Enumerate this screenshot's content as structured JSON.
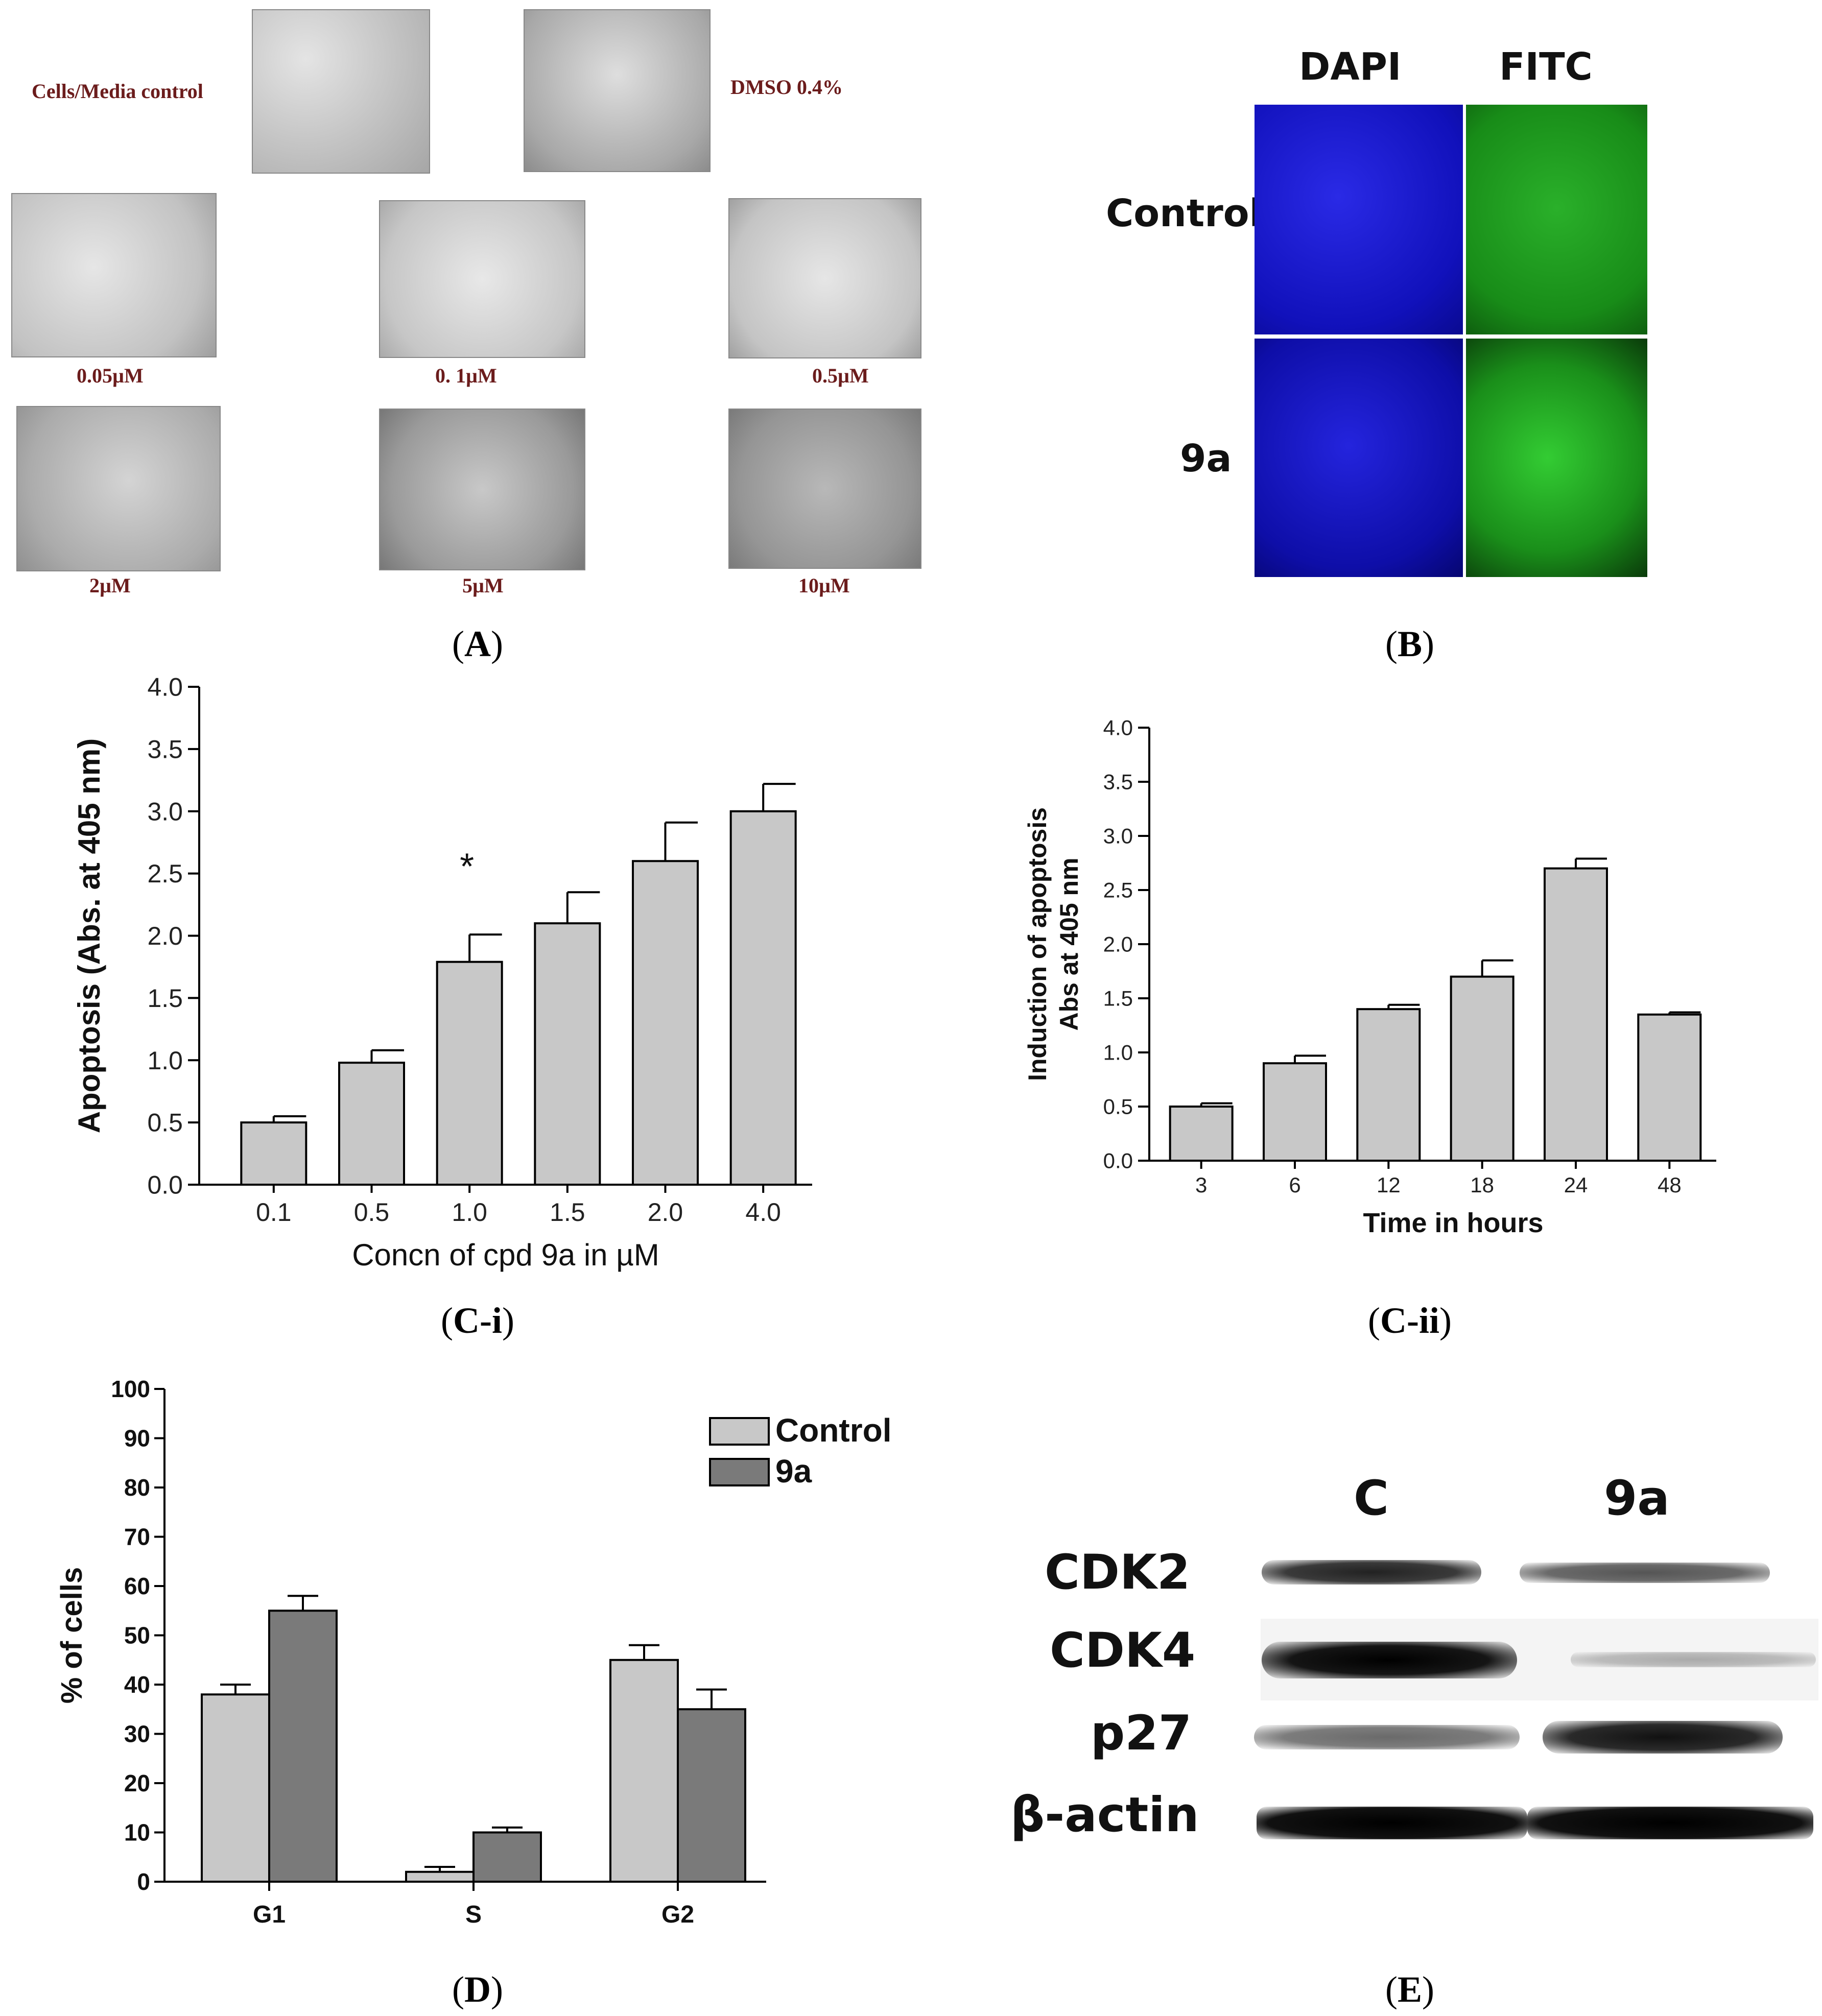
{
  "captions": {
    "A": {
      "open": "(",
      "letter": "A",
      "close": ")"
    },
    "B": {
      "open": "(",
      "letter": "B",
      "close": ")"
    },
    "Ci": {
      "open": "(",
      "letter": "C-i",
      "close": ")"
    },
    "Cii": {
      "open": "(",
      "letter": "C-ii",
      "close": ")"
    },
    "D": {
      "open": "(",
      "letter": "D",
      "close": ")"
    },
    "E": {
      "open": "(",
      "letter": "E",
      "close": ")"
    }
  },
  "panel_a": {
    "cells_media_control": "Cells/Media control",
    "dmso": "DMSO 0.4%",
    "conc_labels": [
      "0.05µM",
      "0. 1µM",
      "0.5µM",
      "2µM",
      "5µM",
      "10µM"
    ]
  },
  "panel_b": {
    "col_dapi": "DAPI",
    "col_fitc": "FITC",
    "row_control": "Control",
    "row_9a": "9a",
    "dapi_color": "#1515c8",
    "fitc_color": "#1a8f1a"
  },
  "panel_e": {
    "lane_c": "C",
    "lane_9a": "9a",
    "bands": [
      "CDK2",
      "CDK4",
      "p27",
      "β-actin"
    ]
  },
  "chart_data": [
    {
      "id": "C-i",
      "type": "bar",
      "categories": [
        "0.1",
        "0.5",
        "1.0",
        "1.5",
        "2.0",
        "4.0"
      ],
      "values": [
        0.5,
        0.98,
        1.79,
        2.1,
        2.6,
        3.0
      ],
      "errors": [
        0.05,
        0.1,
        0.22,
        0.25,
        0.31,
        0.22
      ],
      "yticks": [
        "0.0",
        "0.5",
        "1.0",
        "1.5",
        "2.0",
        "2.5",
        "3.0",
        "3.5",
        "4.0"
      ],
      "ylim": [
        0,
        4.0
      ],
      "xlabel": "Concn of cpd 9a in µM",
      "ylabel": "Apoptosis (Abs. at 405 nm)",
      "annotation": "*",
      "bar_color": "#c8c8c8"
    },
    {
      "id": "C-ii",
      "type": "bar",
      "categories": [
        "3",
        "6",
        "12",
        "18",
        "24",
        "48"
      ],
      "values": [
        0.5,
        0.9,
        1.4,
        1.7,
        2.7,
        1.35
      ],
      "errors": [
        0.03,
        0.07,
        0.04,
        0.15,
        0.09,
        0.02
      ],
      "yticks": [
        "0.0",
        "0.5",
        "1.0",
        "1.5",
        "2.0",
        "2.5",
        "3.0",
        "3.5",
        "4.0"
      ],
      "ylim": [
        0,
        4.0
      ],
      "xlabel": "Time in hours",
      "ylabel_line1": "Induction of apoptosis",
      "ylabel_line2": "Abs at 405 nm",
      "bar_color": "#c8c8c8"
    },
    {
      "id": "D",
      "type": "bar",
      "categories": [
        "G1",
        "S",
        "G2"
      ],
      "series": [
        {
          "name": "Control",
          "values": [
            38,
            2,
            45
          ],
          "errors": [
            2,
            1,
            3
          ],
          "color": "#c8c8c8"
        },
        {
          "name": "9a",
          "values": [
            55,
            10,
            35
          ],
          "errors": [
            3,
            1,
            4
          ],
          "color": "#7a7a7a"
        }
      ],
      "yticks": [
        "0",
        "10",
        "20",
        "30",
        "40",
        "50",
        "60",
        "70",
        "80",
        "90",
        "100"
      ],
      "ylim": [
        0,
        100
      ],
      "ylabel": "% of cells",
      "legend": "top-right"
    }
  ]
}
